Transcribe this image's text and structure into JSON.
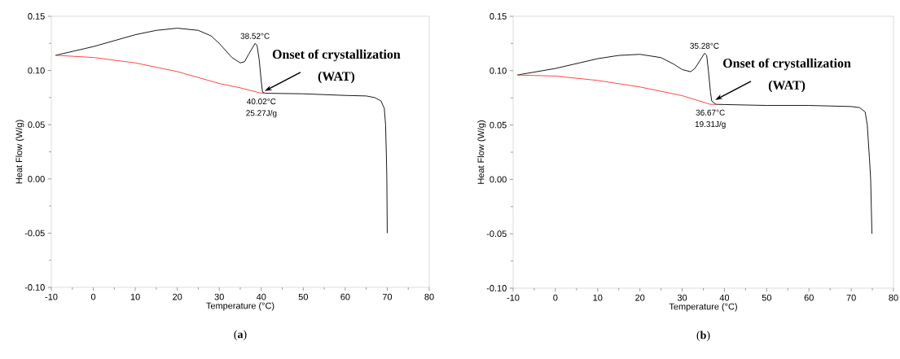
{
  "chart_data": [
    {
      "type": "line",
      "title": "(**a**)",
      "xlabel": "Temperature (°C)",
      "ylabel": "Heat Flow (W/g)",
      "xlim": [
        -10,
        80
      ],
      "xticks": [
        -10,
        0,
        10,
        20,
        30,
        40,
        50,
        60,
        70,
        80
      ],
      "ylim": [
        -0.1,
        0.15
      ],
      "yticks": [
        {
          "value": -0.1,
          "label": "-0.10"
        },
        {
          "value": -0.05,
          "label": "-0.05"
        },
        {
          "value": 0,
          "label": "0.00"
        },
        {
          "value": 0.05,
          "label": "0.05"
        },
        {
          "value": 0.1,
          "label": "0.10"
        },
        {
          "value": 0.15,
          "label": "0.15"
        }
      ],
      "series": [
        {
          "color": "#000000",
          "x": [
            -9,
            0,
            10,
            15,
            20,
            25,
            28,
            30,
            33,
            35,
            36,
            37,
            38.52,
            39,
            39.5,
            40,
            40.3,
            41,
            50,
            60,
            65,
            67,
            68.5,
            69.3,
            69.6,
            69.8,
            69.9,
            70
          ],
          "values": [
            0.114,
            0.122,
            0.133,
            0.137,
            0.139,
            0.137,
            0.132,
            0.125,
            0.112,
            0.107,
            0.108,
            0.115,
            0.125,
            0.123,
            0.11,
            0.09,
            0.08,
            0.079,
            0.0785,
            0.077,
            0.0765,
            0.075,
            0.072,
            0.065,
            0.05,
            0.02,
            0,
            -0.05
          ]
        },
        {
          "color": "#ff3333",
          "x": [
            -9,
            0,
            10,
            20,
            30,
            35,
            40,
            41
          ],
          "values": [
            0.114,
            0.112,
            0.107,
            0.099,
            0.088,
            0.084,
            0.079,
            0.079
          ]
        }
      ],
      "annotations": [
        {
          "text": "38.52°C",
          "x": 38.52,
          "y": 0.125
        },
        {
          "text": "40.02°C",
          "x": 40.02,
          "y": 0.079
        },
        {
          "text": "25.27J/g",
          "x": 40.02,
          "y": 0.079
        },
        {
          "text": "Onset of crystallization",
          "x": 40.8,
          "y": 0.081
        },
        "(WAT)"
      ]
    },
    {
      "type": "line",
      "title": "(**b**)",
      "xlabel": "Temperature (°C)",
      "ylabel": "Heat Flow (W/g)",
      "xlim": [
        -10,
        80
      ],
      "xticks": [
        -10,
        0,
        10,
        20,
        30,
        40,
        50,
        60,
        70,
        80
      ],
      "ylim": [
        -0.1,
        0.15
      ],
      "yticks": [
        {
          "value": -0.1,
          "label": "-0.10"
        },
        {
          "value": -0.05,
          "label": "-0.05"
        },
        {
          "value": 0,
          "label": "0.00"
        },
        {
          "value": 0.05,
          "label": "0.05"
        },
        {
          "value": 0.1,
          "label": "0.10"
        },
        {
          "value": 0.15,
          "label": "0.15"
        }
      ],
      "series": [
        {
          "color": "#000000",
          "x": [
            -9,
            0,
            10,
            15,
            20,
            25,
            28,
            30,
            32,
            33,
            34,
            35.28,
            35.8,
            36.2,
            36.7,
            37,
            38,
            50,
            60,
            70,
            72,
            73.3,
            73.8,
            74.3,
            74.6,
            74.9
          ],
          "values": [
            0.096,
            0.102,
            0.111,
            0.114,
            0.115,
            0.112,
            0.106,
            0.101,
            0.099,
            0.102,
            0.108,
            0.116,
            0.114,
            0.1,
            0.08,
            0.072,
            0.069,
            0.068,
            0.068,
            0.067,
            0.066,
            0.062,
            0.05,
            0.02,
            0,
            -0.05
          ]
        },
        {
          "color": "#ff3333",
          "x": [
            -9,
            0,
            10,
            20,
            30,
            36.67,
            38
          ],
          "values": [
            0.096,
            0.095,
            0.091,
            0.085,
            0.077,
            0.069,
            0.069
          ]
        }
      ],
      "annotations": [
        {
          "text": "35.28°C",
          "x": 35.28,
          "y": 0.116
        },
        {
          "text": "36.67°C",
          "x": 36.67,
          "y": 0.069
        },
        {
          "text": "19.31J/g",
          "x": 36.67,
          "y": 0.069
        },
        {
          "text": "Onset of crystallization",
          "x": 37.8,
          "y": 0.073
        },
        "(WAT)"
      ]
    }
  ]
}
